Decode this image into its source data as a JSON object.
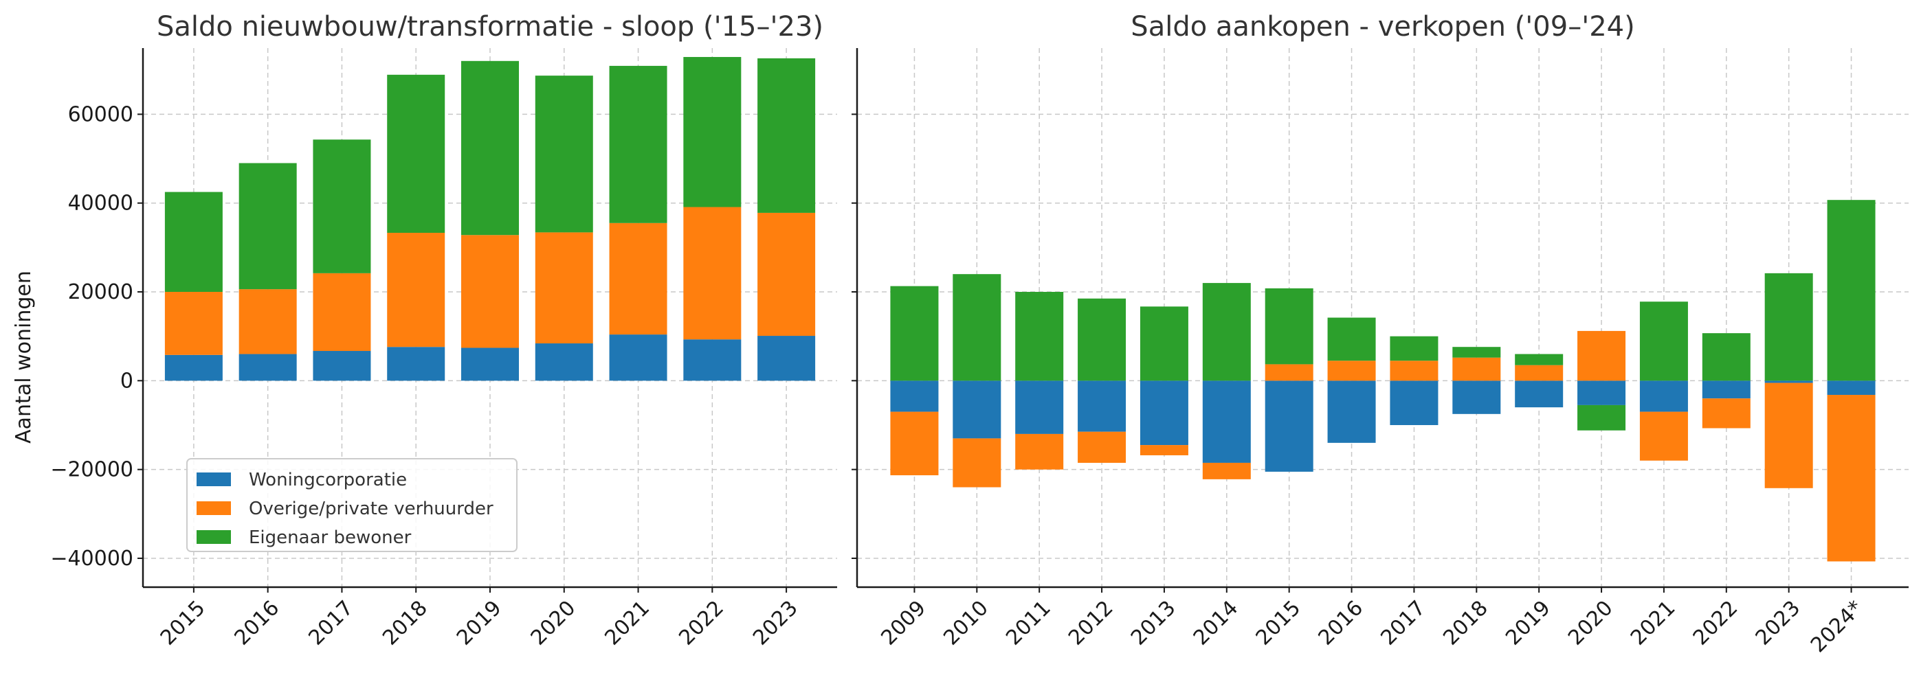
{
  "colors": {
    "woningcorporatie": "#1f77b4",
    "overige": "#ff7f0e",
    "eigenaar": "#2ca02c"
  },
  "shared_ylabel": "Aantal woningen",
  "chart_data": [
    {
      "type": "bar",
      "stacked": true,
      "title": "Saldo nieuwbouw/transformatie - sloop ('15–'23)",
      "xlabel": "",
      "ylabel": "Aantal woningen",
      "ylim": [
        -46500,
        78000
      ],
      "yticks": [
        -40000,
        -20000,
        0,
        20000,
        40000,
        60000
      ],
      "grid": true,
      "legend_position": "lower-left",
      "categories": [
        "2015",
        "2016",
        "2017",
        "2018",
        "2019",
        "2020",
        "2021",
        "2022",
        "2023"
      ],
      "series": [
        {
          "name": "Woningcorporatie",
          "color_key": "woningcorporatie",
          "values": [
            5800,
            6000,
            6700,
            7600,
            7400,
            8400,
            10400,
            9300,
            10100
          ]
        },
        {
          "name": "Overige/private verhuurder",
          "color_key": "overige",
          "values": [
            14200,
            14600,
            17500,
            25700,
            25400,
            25000,
            25100,
            29800,
            27700
          ]
        },
        {
          "name": "Eigenaar bewoner",
          "color_key": "eigenaar",
          "values": [
            22500,
            28400,
            30100,
            35600,
            39200,
            35300,
            35400,
            33800,
            34800
          ]
        }
      ]
    },
    {
      "type": "bar",
      "stacked": true,
      "title": "Saldo aankopen - verkopen ('09–'24)",
      "xlabel": "",
      "ylabel": "",
      "ylim": [
        -46500,
        78000
      ],
      "yticks": [
        -40000,
        -20000,
        0,
        20000,
        40000,
        60000
      ],
      "grid": true,
      "categories": [
        "2009",
        "2010",
        "2011",
        "2012",
        "2013",
        "2014",
        "2015",
        "2016",
        "2017",
        "2018",
        "2019",
        "2020",
        "2021",
        "2022",
        "2023",
        "2024*"
      ],
      "series": [
        {
          "name": "Woningcorporatie",
          "color_key": "woningcorporatie",
          "values": [
            -7000,
            -13000,
            -12000,
            -11500,
            -14500,
            -18500,
            -20500,
            -14000,
            -10000,
            -7500,
            -6000,
            -5500,
            -7000,
            -4000,
            -500,
            -3200
          ]
        },
        {
          "name": "Overige/private verhuurder",
          "color_key": "overige",
          "values": [
            -14300,
            -11000,
            -8000,
            -7000,
            -2300,
            -3700,
            3700,
            4500,
            4500,
            5200,
            3500,
            11200,
            -11000,
            -6700,
            -23700,
            -37500
          ]
        },
        {
          "name": "Eigenaar bewoner",
          "color_key": "eigenaar",
          "values": [
            21300,
            24000,
            20000,
            18500,
            16700,
            22000,
            17100,
            9700,
            5500,
            2400,
            2500,
            -5700,
            17800,
            10700,
            24200,
            40700
          ]
        }
      ]
    }
  ]
}
